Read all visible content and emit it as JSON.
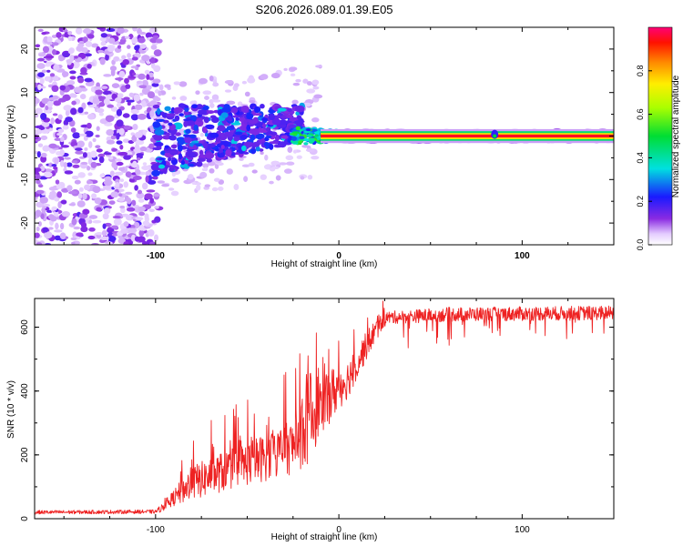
{
  "figure": {
    "title": "S206.2026.089.01.39.E05"
  },
  "chart_data": [
    {
      "type": "heatmap",
      "xlabel": "Height of straight line (km)",
      "ylabel": "Frequency (Hz)",
      "xlim": [
        -166,
        150
      ],
      "ylim": [
        -25,
        25
      ],
      "xticks": [
        -100,
        0,
        100
      ],
      "yticks": [
        -20,
        -10,
        0,
        10,
        20
      ],
      "description_regions": [
        {
          "x_range": [
            -166,
            -100
          ],
          "freq_range": [
            -25,
            25
          ],
          "amplitude": "low, diffuse noise"
        },
        {
          "x_range": [
            -100,
            -20
          ],
          "freq_range": [
            -10,
            8
          ],
          "amplitude": "0.1-0.3 blobs, drifting upward"
        },
        {
          "x_range": [
            -20,
            150
          ],
          "freq_range": [
            -1,
            1
          ],
          "amplitude": "0.6-1.0 narrow line at 0 Hz"
        }
      ],
      "colorbar": {
        "label": "Normalized spectral amplitude",
        "range": [
          0.0,
          1.0
        ],
        "ticks": [
          "0.0",
          "0.2",
          "0.4",
          "0.6",
          "0.8"
        ]
      }
    },
    {
      "type": "line",
      "xlabel": "Height of straight line (km)",
      "ylabel": "SNR (10 * v/v)",
      "xlim": [
        -166,
        150
      ],
      "ylim": [
        0,
        690
      ],
      "xticks": [
        -100,
        0,
        100
      ],
      "yticks": [
        0,
        200,
        400,
        600
      ],
      "color": "#ee2222",
      "series_envelope": [
        {
          "x": -166,
          "mean": 20,
          "spread": 12
        },
        {
          "x": -100,
          "mean": 22,
          "spread": 12
        },
        {
          "x": -92,
          "mean": 50,
          "spread": 40
        },
        {
          "x": -80,
          "mean": 95,
          "spread": 110
        },
        {
          "x": -60,
          "mean": 135,
          "spread": 130
        },
        {
          "x": -40,
          "mean": 170,
          "spread": 150
        },
        {
          "x": -25,
          "mean": 200,
          "spread": 170
        },
        {
          "x": -18,
          "mean": 260,
          "spread": 300
        },
        {
          "x": -10,
          "mean": 330,
          "spread": 200
        },
        {
          "x": 5,
          "mean": 420,
          "spread": 120
        },
        {
          "x": 18,
          "mean": 560,
          "spread": 80
        },
        {
          "x": 26,
          "mean": 630,
          "spread": 40
        },
        {
          "x": 60,
          "mean": 640,
          "spread": 45
        },
        {
          "x": 150,
          "mean": 645,
          "spread": 45
        }
      ]
    }
  ]
}
